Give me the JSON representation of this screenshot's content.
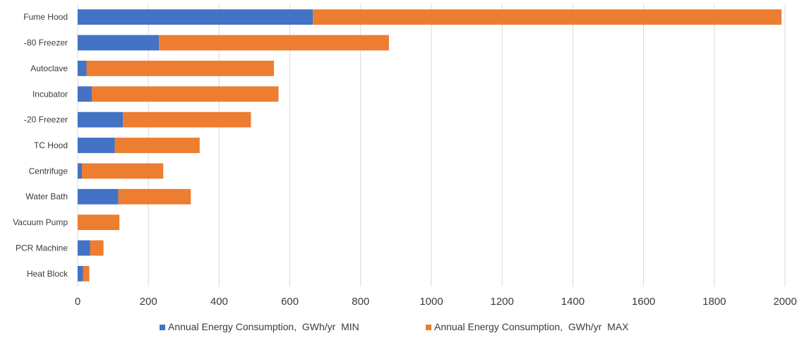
{
  "chart_data": {
    "type": "bar",
    "orientation": "horizontal",
    "stacked": true,
    "title": "",
    "xlabel": "",
    "ylabel": "",
    "categories": [
      "Fume Hood",
      "-80 Freezer",
      "Autoclave",
      "Incubator",
      "-20 Freezer",
      "TC Hood",
      "Centrifuge",
      "Water Bath",
      "Vacuum Pump",
      "PCR Machine",
      "Heat Block"
    ],
    "series": [
      {
        "name": "Annual Energy Consumption,  GWh/yr  MIN",
        "color": "#4472c4",
        "values": [
          665,
          230,
          25,
          40,
          128,
          105,
          12,
          115,
          0,
          35,
          15
        ]
      },
      {
        "name": "Annual Energy Consumption,  GWh/yr  MAX",
        "color": "#ed7d31",
        "values": [
          1325,
          650,
          530,
          528,
          362,
          240,
          230,
          205,
          118,
          38,
          18
        ]
      }
    ],
    "xlim": [
      0,
      2000
    ],
    "xticks": [
      "0",
      "200",
      "400",
      "600",
      "800",
      "1000",
      "1200",
      "1400",
      "1600",
      "1800",
      "2000"
    ],
    "grid": true,
    "legend_position": "bottom"
  }
}
